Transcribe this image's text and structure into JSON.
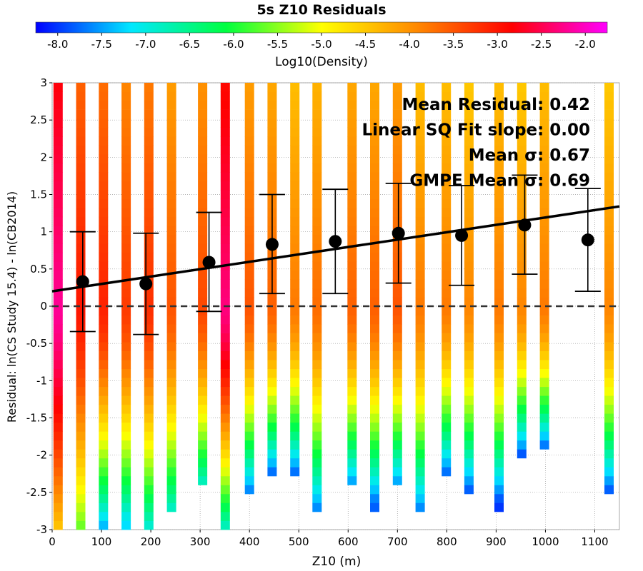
{
  "chart_data": {
    "type": "heatmap",
    "title": "5s Z10 Residuals",
    "xlabel": "Z10 (m)",
    "ylabel": "Residual: ln(CS Study 15.4) - ln(CB2014)",
    "xlim": [
      0,
      1150
    ],
    "ylim": [
      -3,
      3
    ],
    "x_ticks": [
      0,
      100,
      200,
      300,
      400,
      500,
      600,
      700,
      800,
      900,
      1000,
      1100
    ],
    "y_ticks": [
      -3,
      -2.5,
      -2,
      -1.5,
      -1,
      -0.5,
      0,
      0.5,
      1,
      1.5,
      2,
      2.5,
      3
    ],
    "colorbar": {
      "label": "Log10(Density)",
      "range": [
        -8.25,
        -1.75
      ],
      "ticks": [
        -8.0,
        -7.5,
        -7.0,
        -6.5,
        -6.0,
        -5.5,
        -5.0,
        -4.5,
        -4.0,
        -3.5,
        -3.0,
        -2.5,
        -2.0
      ],
      "colormap": [
        "#0000ff",
        "#00e8ff",
        "#00ff40",
        "#ffff00",
        "#ff8800",
        "#ff0000",
        "#ff00ff"
      ]
    },
    "density_columns": [
      {
        "x": 12,
        "ymin": -3.0,
        "ymax": 3.0,
        "peak": -2.2,
        "edge": -4.5
      },
      {
        "x": 58,
        "ymin": -3.0,
        "ymax": 3.0,
        "peak": -3.0,
        "edge": -5.7
      },
      {
        "x": 104,
        "ymin": -3.0,
        "ymax": 3.0,
        "peak": -3.1,
        "edge": -7.5
      },
      {
        "x": 150,
        "ymin": -2.9,
        "ymax": 3.0,
        "peak": -3.3,
        "edge": -7.2
      },
      {
        "x": 196,
        "ymin": -3.0,
        "ymax": 3.0,
        "peak": -3.2,
        "edge": -7.0
      },
      {
        "x": 242,
        "ymin": -2.75,
        "ymax": 3.0,
        "peak": -3.5,
        "edge": -6.9
      },
      {
        "x": 305,
        "ymin": -2.4,
        "ymax": 3.0,
        "peak": -3.4,
        "edge": -6.9
      },
      {
        "x": 351,
        "ymin": -3.0,
        "ymax": 3.0,
        "peak": -2.3,
        "edge": -6.9
      },
      {
        "x": 400,
        "ymin": -2.5,
        "ymax": 3.0,
        "peak": -3.5,
        "edge": -7.7
      },
      {
        "x": 446,
        "ymin": -2.25,
        "ymax": 3.0,
        "peak": -3.6,
        "edge": -7.8
      },
      {
        "x": 492,
        "ymin": -2.25,
        "ymax": 3.0,
        "peak": -3.8,
        "edge": -7.8
      },
      {
        "x": 537,
        "ymin": -2.75,
        "ymax": 3.0,
        "peak": -3.7,
        "edge": -7.7
      },
      {
        "x": 608,
        "ymin": -2.4,
        "ymax": 3.0,
        "peak": -3.6,
        "edge": -7.6
      },
      {
        "x": 654,
        "ymin": -2.65,
        "ymax": 3.0,
        "peak": -3.6,
        "edge": -7.8
      },
      {
        "x": 700,
        "ymin": -2.4,
        "ymax": 3.0,
        "peak": -3.5,
        "edge": -7.6
      },
      {
        "x": 746,
        "ymin": -2.75,
        "ymax": 3.0,
        "peak": -3.8,
        "edge": -7.7
      },
      {
        "x": 799,
        "ymin": -2.25,
        "ymax": 3.0,
        "peak": -3.8,
        "edge": -7.8
      },
      {
        "x": 845,
        "ymin": -2.5,
        "ymax": 3.0,
        "peak": -3.9,
        "edge": -7.9
      },
      {
        "x": 906,
        "ymin": -2.65,
        "ymax": 3.0,
        "peak": -3.8,
        "edge": -8.0
      },
      {
        "x": 952,
        "ymin": -2.0,
        "ymax": 3.0,
        "peak": -3.9,
        "edge": -7.9
      },
      {
        "x": 998,
        "ymin": -1.9,
        "ymax": 3.0,
        "peak": -3.8,
        "edge": -7.8
      },
      {
        "x": 1129,
        "ymin": -2.5,
        "ymax": 3.0,
        "peak": -3.9,
        "edge": -7.9
      }
    ],
    "bins": [
      {
        "x": 62,
        "mean": 0.33,
        "lower": -0.34,
        "upper": 1.0
      },
      {
        "x": 190,
        "mean": 0.3,
        "lower": -0.38,
        "upper": 0.98
      },
      {
        "x": 318,
        "mean": 0.59,
        "lower": -0.07,
        "upper": 1.26
      },
      {
        "x": 446,
        "mean": 0.83,
        "lower": 0.17,
        "upper": 1.5
      },
      {
        "x": 574,
        "mean": 0.87,
        "lower": 0.17,
        "upper": 1.57
      },
      {
        "x": 702,
        "mean": 0.98,
        "lower": 0.31,
        "upper": 1.65
      },
      {
        "x": 830,
        "mean": 0.95,
        "lower": 0.28,
        "upper": 1.62
      },
      {
        "x": 958,
        "mean": 1.09,
        "lower": 0.43,
        "upper": 1.76
      },
      {
        "x": 1086,
        "mean": 0.89,
        "lower": 0.2,
        "upper": 1.58
      }
    ],
    "fit_line": {
      "x": [
        0,
        1150
      ],
      "y": [
        0.2,
        1.34
      ]
    },
    "zero_line": 0,
    "grid": true,
    "annotations": [
      "Mean Residual: 0.42",
      "Linear SQ Fit slope: 0.00",
      "Mean σ: 0.67",
      "GMPE Mean σ: 0.69"
    ]
  }
}
